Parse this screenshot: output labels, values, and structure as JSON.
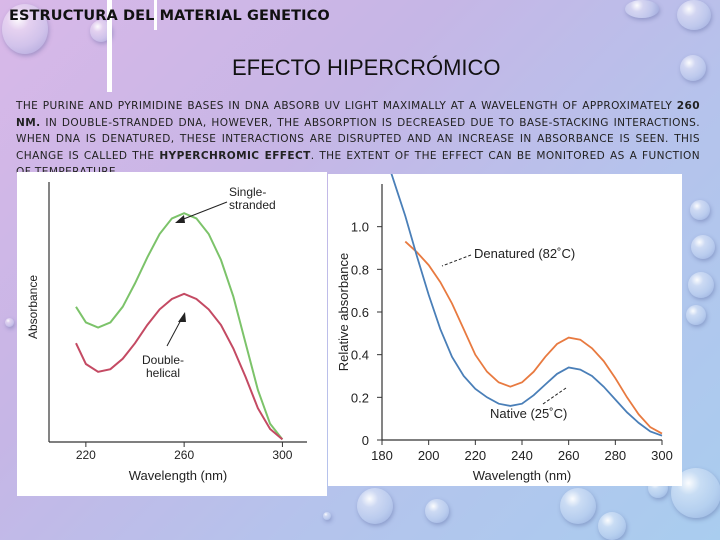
{
  "header": {
    "title": "ESTRUCTURA DEL MATERIAL GENETICO"
  },
  "slide": {
    "title": "EFECTO HIPERCRÓMICO"
  },
  "body": {
    "part1": "THE PURINE AND PYRIMIDINE BASES IN DNA ABSORB UV LIGHT MAXIMALLY AT A WAVELENGTH OF APPROXIMATELY ",
    "bold1": "260 NM.",
    "part2": " IN DOUBLE-STRANDED DNA, HOWEVER, THE ABSORPTION IS DECREASED DUE TO BASE-STACKING INTERACTIONS. WHEN DNA IS DENATURED, THESE INTERACTIONS ARE DISRUPTED AND AN INCREASE IN ABSORBANCE IS SEEN. THIS CHANGE IS CALLED THE ",
    "bold2": "HYPERCHROMIC EFFECT",
    "part3": ". THE EXTENT OF THE EFFECT CAN BE MONITORED AS A FUNCTION OF TEMPERATURE"
  },
  "colors": {
    "single_stranded": "#7cc36a",
    "double_helical": "#c44a63",
    "denatured": "#e87a40",
    "native": "#4a7fb8",
    "axis": "#333333"
  },
  "chart_data": [
    {
      "type": "line",
      "title": "",
      "xlabel": "Wavelength (nm)",
      "ylabel": "Absorbance",
      "x_ticks": [
        220,
        260,
        300
      ],
      "xlim": [
        205,
        310
      ],
      "ylim": [
        0,
        1
      ],
      "y_ticks_shown": false,
      "grid": false,
      "series": [
        {
          "name": "Single-stranded",
          "color_key": "single_stranded",
          "x": [
            216,
            220,
            225,
            230,
            235,
            240,
            245,
            250,
            255,
            260,
            265,
            270,
            275,
            280,
            285,
            290,
            295,
            300
          ],
          "y": [
            0.52,
            0.46,
            0.44,
            0.46,
            0.52,
            0.61,
            0.71,
            0.8,
            0.86,
            0.88,
            0.86,
            0.8,
            0.7,
            0.56,
            0.38,
            0.2,
            0.07,
            0.01
          ]
        },
        {
          "name": "Double-helical",
          "color_key": "double_helical",
          "x": [
            216,
            220,
            225,
            230,
            235,
            240,
            245,
            250,
            255,
            260,
            265,
            270,
            275,
            280,
            285,
            290,
            295,
            300
          ],
          "y": [
            0.38,
            0.3,
            0.27,
            0.28,
            0.32,
            0.38,
            0.45,
            0.51,
            0.55,
            0.57,
            0.55,
            0.51,
            0.45,
            0.36,
            0.25,
            0.13,
            0.05,
            0.01
          ]
        }
      ],
      "annotations": [
        {
          "label": "Single-\nstranded",
          "series": "Single-stranded"
        },
        {
          "label": "Double-\nhelical",
          "series": "Double-helical"
        }
      ]
    },
    {
      "type": "line",
      "title": "",
      "xlabel": "Wavelength (nm)",
      "ylabel": "Relative absorbance",
      "x_ticks": [
        180,
        200,
        220,
        240,
        260,
        280,
        300
      ],
      "y_ticks": [
        0,
        0.2,
        0.4,
        0.6,
        0.8,
        1.0
      ],
      "y_tick_labels": [
        "0",
        "0.2",
        "0.4",
        "0.6",
        "0.8",
        "1.0"
      ],
      "xlim": [
        180,
        300
      ],
      "ylim": [
        0,
        1.2
      ],
      "grid": false,
      "series": [
        {
          "name": "Denatured (82°C)",
          "color_key": "denatured",
          "x": [
            190,
            195,
            200,
            205,
            210,
            215,
            220,
            225,
            230,
            235,
            240,
            245,
            250,
            255,
            260,
            265,
            270,
            275,
            280,
            285,
            290,
            295,
            300
          ],
          "y": [
            0.93,
            0.88,
            0.82,
            0.74,
            0.64,
            0.52,
            0.4,
            0.32,
            0.27,
            0.25,
            0.27,
            0.32,
            0.39,
            0.45,
            0.48,
            0.47,
            0.43,
            0.37,
            0.29,
            0.2,
            0.12,
            0.06,
            0.03
          ]
        },
        {
          "name": "Native (25°C)",
          "color_key": "native",
          "x": [
            184,
            187,
            190,
            195,
            200,
            205,
            210,
            215,
            220,
            225,
            230,
            235,
            240,
            245,
            250,
            255,
            260,
            265,
            270,
            275,
            280,
            285,
            290,
            295,
            300
          ],
          "y": [
            1.25,
            1.15,
            1.05,
            0.86,
            0.68,
            0.52,
            0.39,
            0.3,
            0.24,
            0.2,
            0.17,
            0.16,
            0.17,
            0.21,
            0.26,
            0.31,
            0.34,
            0.33,
            0.3,
            0.25,
            0.19,
            0.13,
            0.08,
            0.04,
            0.02
          ]
        }
      ],
      "annotations": [
        {
          "label": "Denatured (82˚C)",
          "series": "Denatured (82°C)"
        },
        {
          "label": "Native (25˚C)",
          "series": "Native (25°C)"
        }
      ]
    }
  ]
}
